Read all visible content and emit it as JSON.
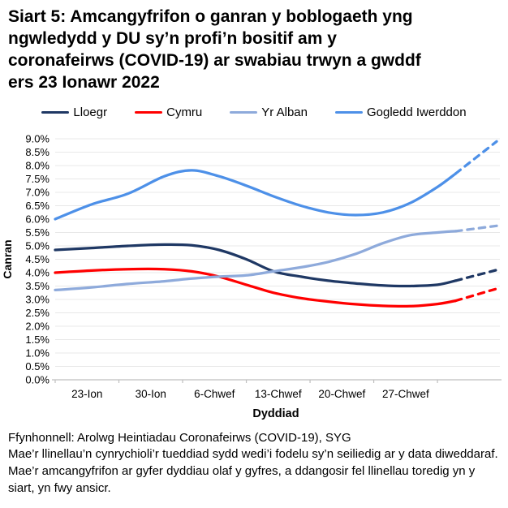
{
  "title": {
    "lines": [
      "Siart 5: Amcangyfrifon o ganran y boblogaeth yng",
      "ngwledydd y DU sy’n profi’n bositif am y",
      "coronafeirws (COVID-19) ar swabiau trwyn a gwddf",
      "ers 23 Ionawr 2022"
    ]
  },
  "footer": {
    "source": "Ffynhonnell: Arolwg Heintiadau Coronafeirws (COVID-19), SYG",
    "note": "Mae’r llinellau’n cynrychioli’r tueddiad sydd wedi’i fodelu sy’n seiliedig ar y data diweddaraf. Mae’r amcangyfrifon ar gyfer dyddiau olaf y gyfres, a ddangosir fel llinellau toredig yn y siart, yn fwy ansicr."
  },
  "chart_data": {
    "type": "line",
    "xlabel": "Dyddiad",
    "ylabel": "Canran",
    "ylim": [
      0,
      9
    ],
    "y_tick_step": 0.5,
    "y_tick_suffix": "%",
    "grid": true,
    "legend_position": "top",
    "x_axis": {
      "unit": "days since 23 Ionawr 2022",
      "max_day": 48.5,
      "tick_days": [
        0,
        7,
        14,
        21,
        28,
        35,
        42
      ],
      "label_center_days": [
        3.5,
        10.5,
        17.5,
        24.5,
        31.5,
        38.5
      ],
      "labels": [
        "23-Ion",
        "30-Ion",
        "6-Chwef",
        "13-Chwef",
        "20-Chwef",
        "27-Chwef"
      ]
    },
    "dashed_from_day": 44,
    "days": [
      0,
      4,
      8,
      12,
      15,
      18,
      21,
      24,
      27,
      30,
      33,
      36,
      39,
      42,
      44,
      48.5
    ],
    "series": [
      {
        "name": "Lloegr",
        "color": "#1F3864",
        "values": [
          4.85,
          4.92,
          5.0,
          5.05,
          5.02,
          4.85,
          4.5,
          4.05,
          3.85,
          3.7,
          3.6,
          3.52,
          3.5,
          3.55,
          3.7,
          4.1
        ]
      },
      {
        "name": "Cymru",
        "color": "#FF0000",
        "values": [
          4.0,
          4.08,
          4.13,
          4.13,
          4.05,
          3.85,
          3.55,
          3.25,
          3.05,
          2.92,
          2.82,
          2.76,
          2.75,
          2.83,
          2.95,
          3.4
        ]
      },
      {
        "name": "Yr Alban",
        "color": "#8EAADB",
        "values": [
          3.35,
          3.45,
          3.58,
          3.68,
          3.78,
          3.85,
          3.9,
          4.05,
          4.2,
          4.4,
          4.7,
          5.1,
          5.4,
          5.5,
          5.55,
          5.75
        ]
      },
      {
        "name": "Gogledd Iwerddon",
        "color": "#4D90E8",
        "values": [
          6.0,
          6.55,
          6.95,
          7.6,
          7.82,
          7.6,
          7.25,
          6.85,
          6.5,
          6.25,
          6.15,
          6.25,
          6.6,
          7.2,
          7.7,
          8.9
        ]
      }
    ],
    "colors": {
      "gridline": "#E8E8E8",
      "axis": "#BFBFBF",
      "text": "#000000"
    }
  }
}
